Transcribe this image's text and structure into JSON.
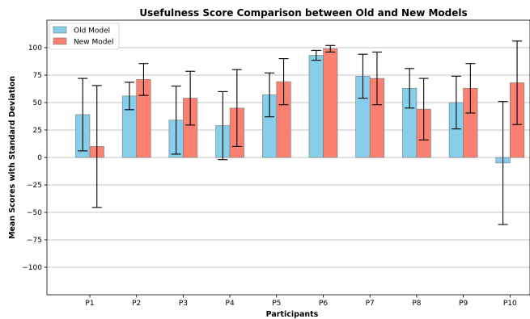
{
  "chart_data": {
    "type": "bar",
    "title": "Usefulness Score Comparison between Old and New Models",
    "xlabel": "Participants",
    "ylabel": "Mean Scores with Standard Deviation",
    "categories": [
      "P1",
      "P2",
      "P3",
      "P4",
      "P5",
      "P6",
      "P7",
      "P8",
      "P9",
      "P10"
    ],
    "series": [
      {
        "name": "Old Model",
        "color": "#87CEEB",
        "values": [
          39,
          56,
          34,
          29,
          57,
          93,
          74,
          63,
          50,
          -5
        ],
        "errors": [
          33,
          12.5,
          31,
          31,
          20,
          4.5,
          20,
          18,
          24,
          56
        ]
      },
      {
        "name": "New Model",
        "color": "#FA8072",
        "values": [
          10,
          71,
          54,
          45,
          69,
          99,
          72,
          44,
          63,
          68
        ],
        "errors": [
          55.5,
          14.5,
          24.5,
          35,
          21,
          3,
          24,
          28,
          22.5,
          38
        ]
      }
    ],
    "ylim": [
      -125,
      125
    ],
    "yticks": [
      -100,
      -75,
      -50,
      -25,
      0,
      25,
      50,
      75,
      100
    ],
    "ytick_labels": [
      "−100",
      "−75",
      "−50",
      "−25",
      "0",
      "25",
      "50",
      "75",
      "100"
    ],
    "grid": "horizontal",
    "legend": "top-left"
  }
}
